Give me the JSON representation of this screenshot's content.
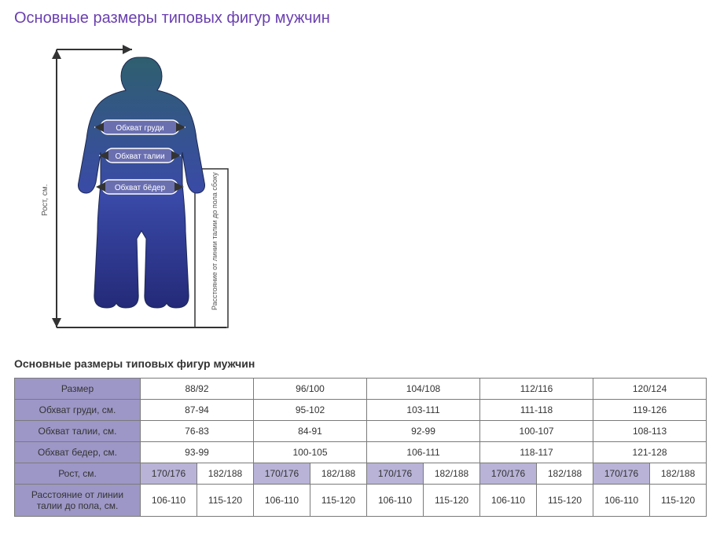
{
  "page_title": "Основные размеры типовых фигур мужчин",
  "subtitle": "Основные размеры типовых фигур мужчин",
  "diagram": {
    "height_label": "Рост, см.",
    "side_label": "Расстояние от линии талии до пола сбоку",
    "chest_label": "Обхват груди",
    "waist_label": "Обхват талии",
    "hips_label": "Обхват бёдер",
    "silhouette_fill_top": "#2f5f6f",
    "silhouette_fill_bottom": "#2b2f88",
    "outline_color": "#333333",
    "badge_fill": "#6a6fb0",
    "badge_stroke": "#ffffff",
    "badge_text_color": "#ffffff"
  },
  "table": {
    "header_bg": "#9d97c7",
    "sub_header_bg": "#b8b3d7",
    "border_color": "#7a7a7a",
    "label_col_width": 160,
    "rows": [
      {
        "label": "Размер",
        "cells": [
          "88/92",
          "96/100",
          "104/108",
          "112/116",
          "120/124"
        ],
        "split": false,
        "is_header": true
      },
      {
        "label": "Обхват груди, см.",
        "cells": [
          "87-94",
          "95-102",
          "103-111",
          "111-118",
          "119-126"
        ],
        "split": false,
        "is_header": false
      },
      {
        "label": "Обхват талии, см.",
        "cells": [
          "76-83",
          "84-91",
          "92-99",
          "100-107",
          "108-113"
        ],
        "split": false,
        "is_header": false
      },
      {
        "label": "Обхват бедер, см.",
        "cells": [
          "93-99",
          "100-105",
          "106-111",
          "118-117",
          "121-128"
        ],
        "split": false,
        "is_header": false
      },
      {
        "label": "Рост, см.",
        "cells": [
          "170/176",
          "182/188",
          "170/176",
          "182/188",
          "170/176",
          "182/188",
          "170/176",
          "182/188",
          "170/176",
          "182/188"
        ],
        "split": true,
        "sub_header": true
      },
      {
        "label": "Расстояние от линии талии до пола, см.",
        "cells": [
          "106-110",
          "115-120",
          "106-110",
          "115-120",
          "106-110",
          "115-120",
          "106-110",
          "115-120",
          "106-110",
          "115-120"
        ],
        "split": true,
        "sub_header": false
      }
    ]
  }
}
